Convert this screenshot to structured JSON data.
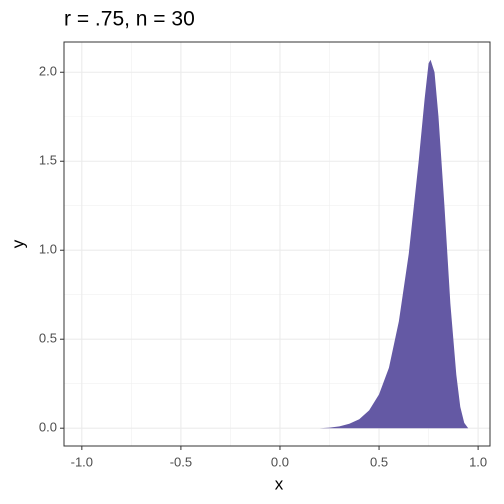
{
  "chart_data": {
    "type": "area",
    "title": "r = .75, n = 30",
    "x_label": "x",
    "y_label": "y",
    "x": [
      -1,
      -0.5,
      0,
      0.2,
      0.25,
      0.3,
      0.35,
      0.4,
      0.45,
      0.5,
      0.55,
      0.6,
      0.65,
      0.7,
      0.73,
      0.75,
      0.76,
      0.78,
      0.8,
      0.83,
      0.86,
      0.89,
      0.91,
      0.93,
      0.95
    ],
    "values": [
      0,
      0,
      0,
      0,
      0.003,
      0.01,
      0.025,
      0.05,
      0.1,
      0.19,
      0.34,
      0.6,
      0.98,
      1.5,
      1.85,
      2.05,
      2.07,
      2.0,
      1.75,
      1.25,
      0.7,
      0.3,
      0.12,
      0.03,
      0
    ],
    "color": "#6459a4",
    "xlim": [
      -1.09,
      1.06
    ],
    "ylim": [
      -0.1,
      2.17
    ],
    "xticks": [
      {
        "value": -1,
        "label": "-1.0"
      },
      -0.5,
      {
        "value": 0,
        "label": "0.0"
      },
      0.5,
      {
        "value": 1,
        "label": "1.0"
      }
    ],
    "yticks": [
      {
        "value": 0,
        "label": "0.0"
      },
      0.5,
      {
        "value": 1,
        "label": "1.0"
      },
      1.5,
      {
        "value": 2,
        "label": "2.0"
      }
    ],
    "x_minor_grid": [
      -0.75,
      -0.25,
      0.25,
      0.75
    ],
    "y_minor_grid": [
      0.25,
      0.75,
      1.25,
      1.75
    ],
    "grid": true
  }
}
